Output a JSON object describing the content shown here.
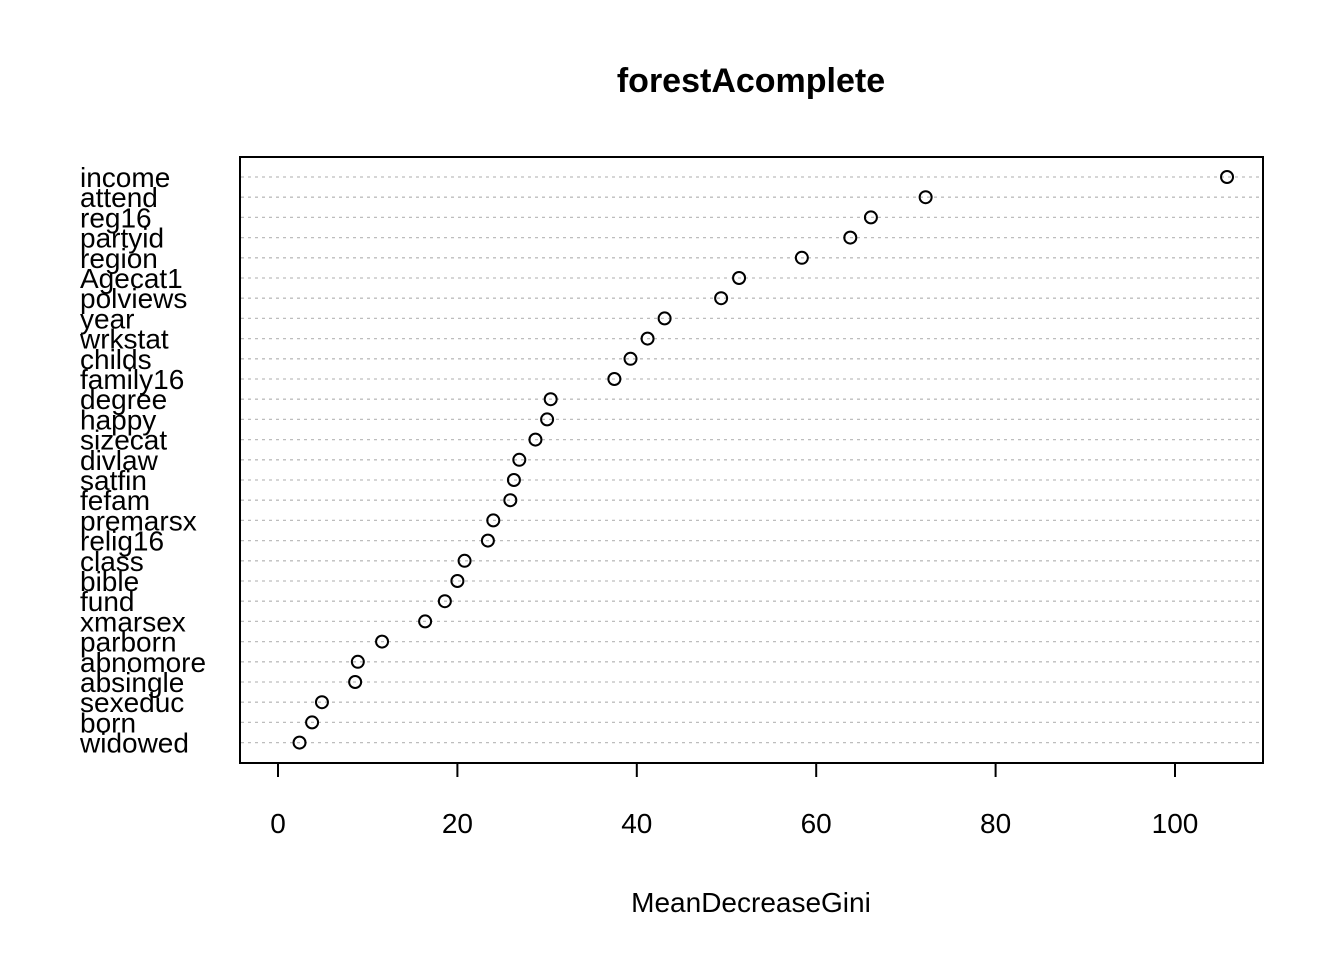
{
  "chart_data": {
    "type": "scatter",
    "title": "forestAcomplete",
    "xlabel": "MeanDecreaseGini",
    "ylabel": "",
    "xlim": [
      -4,
      110
    ],
    "xticks": [
      0,
      20,
      40,
      60,
      80,
      100
    ],
    "grid": "dotted horizontal",
    "categories": [
      "income",
      "attend",
      "reg16",
      "partyid",
      "region",
      "Agecat1",
      "polviews",
      "year",
      "wrkstat",
      "childs",
      "family16",
      "degree",
      "happy",
      "sizecat",
      "divlaw",
      "satfin",
      "fefam",
      "premarsx",
      "relig16",
      "class",
      "bible",
      "fund",
      "xmarsex",
      "parborn",
      "abnomore",
      "absingle",
      "sexeduc",
      "born",
      "widowed"
    ],
    "values": [
      105.8,
      72.2,
      66.1,
      63.8,
      58.4,
      51.4,
      49.4,
      43.1,
      41.2,
      39.3,
      37.5,
      30.4,
      30.0,
      28.7,
      26.9,
      26.3,
      25.9,
      24.0,
      23.4,
      20.8,
      20.0,
      18.6,
      16.4,
      11.6,
      8.9,
      8.6,
      4.9,
      3.8,
      2.4
    ]
  }
}
